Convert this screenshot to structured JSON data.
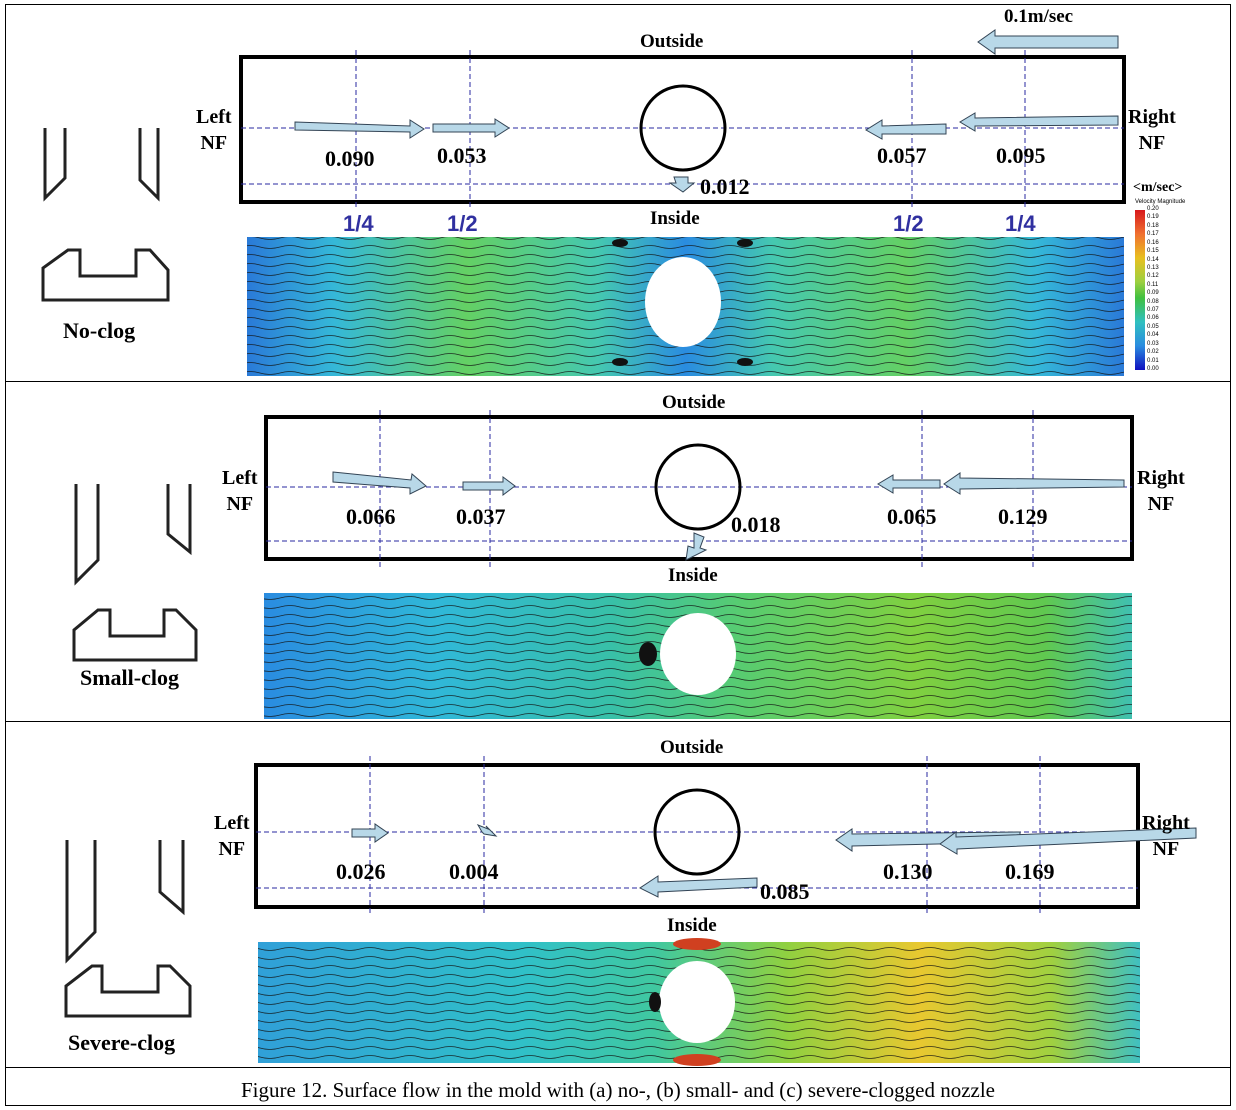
{
  "caption": "Figure 12. Surface flow in the mold with (a) no-, (b) small- and (c) severe-clogged nozzle",
  "scale_arrow_label": "0.1m/sec",
  "colorbar": {
    "unit": "<m/sec>",
    "title": "Velocity Magnitude",
    "ticks": [
      "0.20",
      "0.19",
      "0.18",
      "0.17",
      "0.16",
      "0.15",
      "0.14",
      "0.13",
      "0.12",
      "0.11",
      "0.09",
      "0.08",
      "0.07",
      "0.06",
      "0.05",
      "0.04",
      "0.03",
      "0.02",
      "0.01",
      "0.00"
    ]
  },
  "panels": [
    {
      "name": "No-clog",
      "outside": "Outside",
      "inside": "Inside",
      "left": "Left\nNF",
      "right": "Right\nNF",
      "positions": [
        "1/4",
        "1/2",
        "1/2",
        "1/4"
      ],
      "values": [
        "0.090",
        "0.053",
        "0.012",
        "0.057",
        "0.095"
      ]
    },
    {
      "name": "Small-clog",
      "outside": "Outside",
      "inside": "Inside",
      "left": "Left\nNF",
      "right": "Right\nNF",
      "values": [
        "0.066",
        "0.037",
        "0.018",
        "0.065",
        "0.129"
      ]
    },
    {
      "name": "Severe-clog",
      "outside": "Outside",
      "inside": "Inside",
      "left": "Left\nNF",
      "right": "Right\nNF",
      "values": [
        "0.026",
        "0.004",
        "0.085",
        "0.130",
        "0.169"
      ]
    }
  ]
}
